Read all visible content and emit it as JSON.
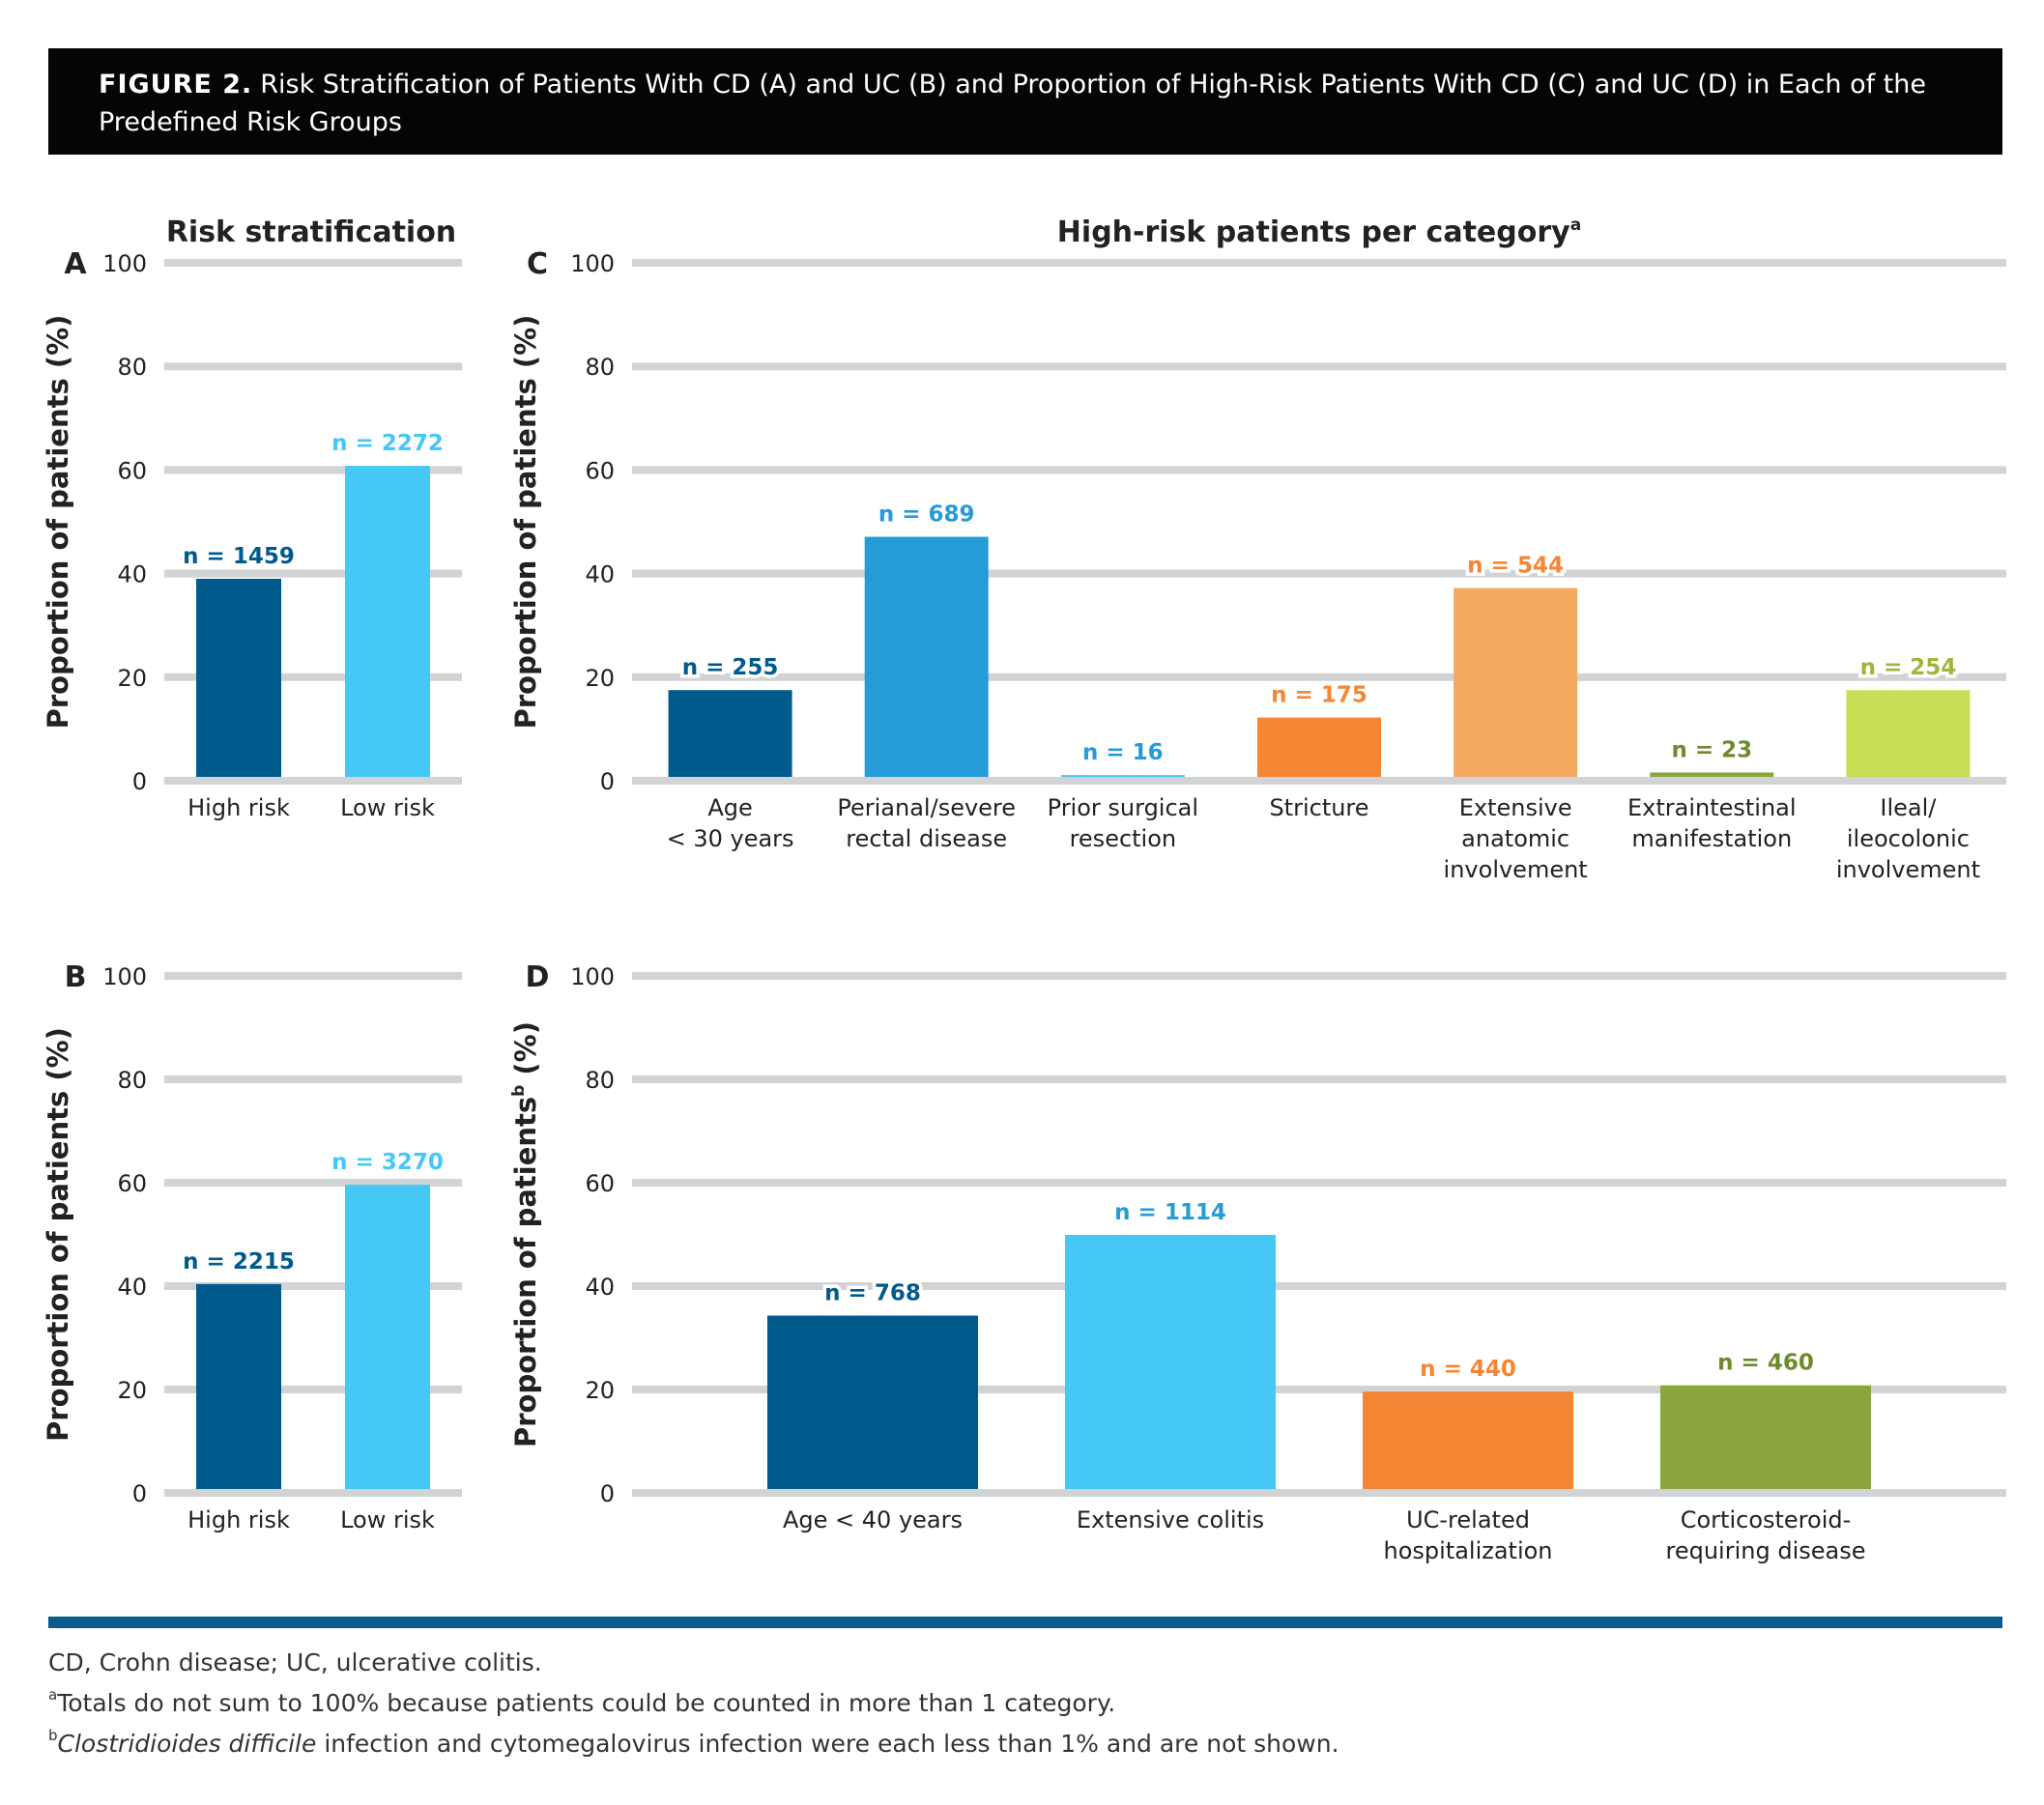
{
  "figure": {
    "label": "FIGURE 2.",
    "title": "Risk Stratification of Patients With CD (A) and UC (B) and Proportion of High-Risk Patients With CD (C) and UC (D) in Each of the Predefined Risk Groups"
  },
  "panel_titles": {
    "risk": "Risk stratification",
    "category": "High-risk patients per category",
    "category_sup": "a"
  },
  "footnotes": {
    "abbrev": "CD, Crohn disease; UC, ulcerative colitis.",
    "a_mark": "a",
    "a_text": "Totals do not sum to 100% because patients could be counted in more than 1 category.",
    "b_mark": "b",
    "b_italic": "Clostridioides difficile",
    "b_text": " infection and cytomegalovirus infection were each less than 1% and are not shown."
  },
  "colors": {
    "dark_blue": "#005a8c",
    "light_blue": "#45c8f5",
    "mid_blue": "#259bd7",
    "orange": "#f58634",
    "light_orange": "#f4a960",
    "olive": "#8aa63d",
    "lime": "#c9dd57",
    "grid": "#d2d3d5"
  },
  "chart_data": [
    {
      "panel": "A",
      "type": "bar",
      "ylabel": "Proportion of patients (%)",
      "ylim": [
        0,
        100
      ],
      "yticks": [
        0,
        20,
        40,
        60,
        80,
        100
      ],
      "categories": [
        [
          "High risk"
        ],
        [
          "Low risk"
        ]
      ],
      "values": [
        39,
        60.8
      ],
      "labels": [
        "n = 1459",
        "n = 2272"
      ],
      "colors": [
        "#005a8c",
        "#45c8f5"
      ],
      "label_colors": [
        "#005a8c",
        "#45c8f5"
      ]
    },
    {
      "panel": "B",
      "type": "bar",
      "ylabel": "Proportion of patients (%)",
      "ylim": [
        0,
        100
      ],
      "yticks": [
        0,
        20,
        40,
        60,
        80,
        100
      ],
      "categories": [
        [
          "High risk"
        ],
        [
          "Low risk"
        ]
      ],
      "values": [
        40.4,
        59.6
      ],
      "labels": [
        "n = 2215",
        "n = 3270"
      ],
      "colors": [
        "#005a8c",
        "#45c8f5"
      ],
      "label_colors": [
        "#005a8c",
        "#45c8f5"
      ]
    },
    {
      "panel": "C",
      "type": "bar",
      "ylabel": "Proportion of patients (%)",
      "ylim": [
        0,
        100
      ],
      "yticks": [
        0,
        20,
        40,
        60,
        80,
        100
      ],
      "categories": [
        [
          "Age",
          "< 30 years"
        ],
        [
          "Perianal/severe",
          "rectal disease"
        ],
        [
          "Prior surgical",
          "resection"
        ],
        [
          "Stricture"
        ],
        [
          "Extensive",
          "anatomic",
          "involvement"
        ],
        [
          "Extraintestinal",
          "manifestation"
        ],
        [
          "Ileal/",
          "ileocolonic",
          "involvement"
        ]
      ],
      "values": [
        17.5,
        47.1,
        1.1,
        12.2,
        37.2,
        1.6,
        17.5
      ],
      "labels": [
        "n = 255",
        "n = 689",
        "n = 16",
        "n = 175",
        "n = 544",
        "n = 23",
        "n = 254"
      ],
      "colors": [
        "#005a8c",
        "#259bd7",
        "#45c8f5",
        "#f58634",
        "#f4a960",
        "#8aa63d",
        "#c9dd57"
      ],
      "label_colors": [
        "#005a8c",
        "#259bd7",
        "#259bd7",
        "#f58634",
        "#f58634",
        "#6e8a2b",
        "#9fb63a"
      ]
    },
    {
      "panel": "D",
      "type": "bar",
      "ylabel": "Proportion of patients",
      "ylabel_sup": "b",
      "ylabel_tail": " (%)",
      "ylim": [
        0,
        100
      ],
      "yticks": [
        0,
        20,
        40,
        60,
        80,
        100
      ],
      "categories": [
        [
          "Age < 40 years"
        ],
        [
          "Extensive colitis"
        ],
        [
          "UC-related",
          "hospitalization"
        ],
        [
          "Corticosteroid-",
          "requiring disease"
        ]
      ],
      "values": [
        34.3,
        49.9,
        19.6,
        20.8
      ],
      "labels": [
        "n = 768",
        "n = 1114",
        "n = 440",
        "n = 460"
      ],
      "colors": [
        "#005a8c",
        "#45c8f5",
        "#f58634",
        "#8aa63d"
      ],
      "label_colors": [
        "#005a8c",
        "#259bd7",
        "#f58634",
        "#6e8a2b"
      ]
    }
  ]
}
